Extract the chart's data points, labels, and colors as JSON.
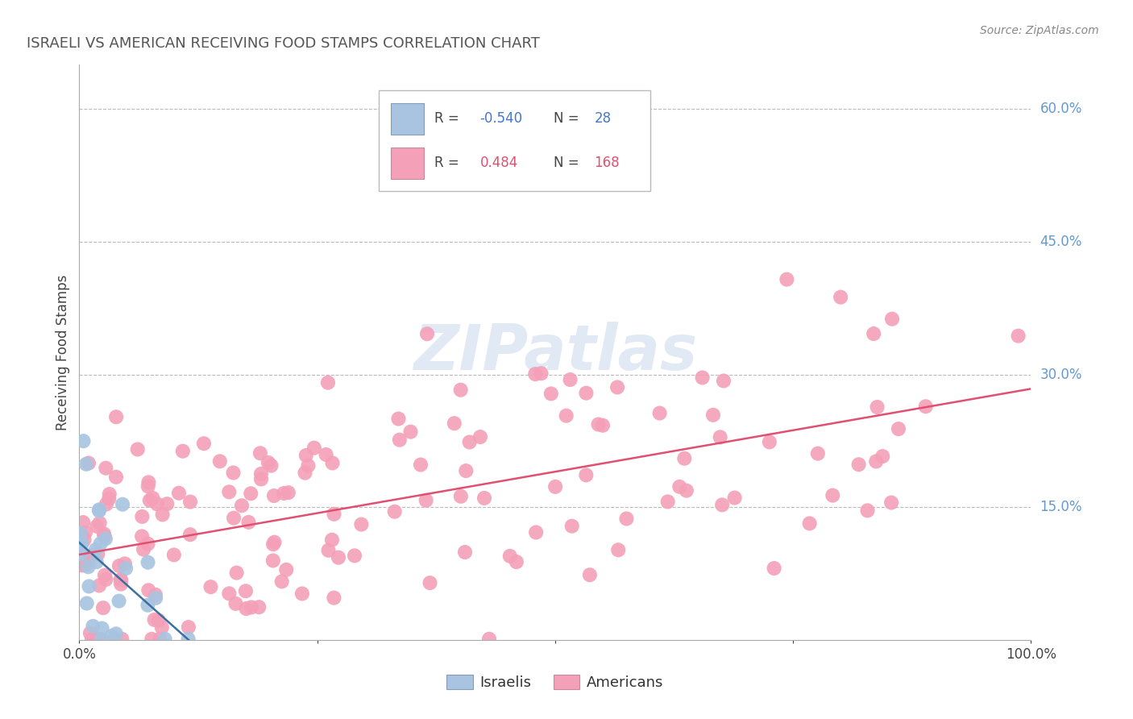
{
  "title": "ISRAELI VS AMERICAN RECEIVING FOOD STAMPS CORRELATION CHART",
  "source": "Source: ZipAtlas.com",
  "ylabel": "Receiving Food Stamps",
  "xlim": [
    0,
    1.0
  ],
  "ylim": [
    0,
    0.65
  ],
  "xtick_positions": [
    0.0,
    1.0
  ],
  "xticklabels": [
    "0.0%",
    "100.0%"
  ],
  "ytick_positions": [
    0.15,
    0.3,
    0.45,
    0.6
  ],
  "ytick_labels_right": [
    "15.0%",
    "30.0%",
    "45.0%",
    "60.0%"
  ],
  "legend_r_israeli": "-0.540",
  "legend_n_israeli": "28",
  "legend_r_american": "0.484",
  "legend_n_american": "168",
  "israeli_color": "#a8c4e0",
  "american_color": "#f4a0b8",
  "israeli_line_color": "#3b6fa0",
  "american_line_color": "#e05070",
  "background_color": "#ffffff",
  "grid_color": "#bbbbbb",
  "title_color": "#555555",
  "source_color": "#888888",
  "right_label_color": "#6699cc",
  "watermark": "ZIPatlas"
}
